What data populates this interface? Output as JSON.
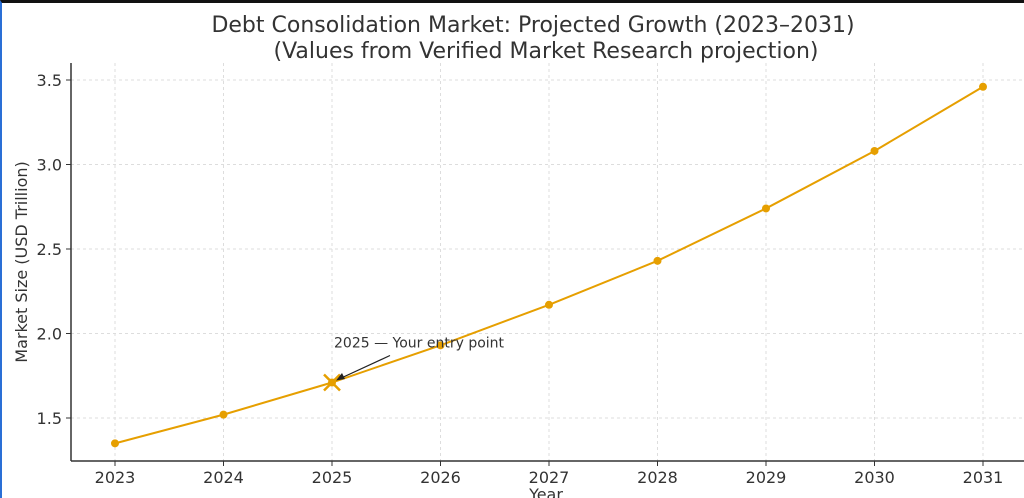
{
  "chart_data": {
    "type": "line",
    "title": "Debt Consolidation Market: Projected Growth (2023–2031)",
    "subtitle": "(Values from Verified Market Research projection)",
    "xlabel": "Year",
    "ylabel": "Market Size (USD Trillion)",
    "x": [
      2023,
      2024,
      2025,
      2026,
      2027,
      2028,
      2029,
      2030,
      2031
    ],
    "values": [
      1.35,
      1.52,
      1.71,
      1.93,
      2.17,
      2.43,
      2.74,
      3.08,
      3.46
    ],
    "x_ticks": [
      "2023",
      "2024",
      "2025",
      "2026",
      "2027",
      "2028",
      "2029",
      "2030",
      "2031"
    ],
    "y_ticks": [
      "1.5",
      "2.0",
      "2.5",
      "3.0",
      "3.5"
    ],
    "ylim": [
      1.25,
      3.58
    ],
    "grid": true,
    "line_color": "#e69f00",
    "annotation": {
      "text": "2025 — Your entry point",
      "x": 2025,
      "y": 1.71,
      "marker": "x"
    }
  }
}
